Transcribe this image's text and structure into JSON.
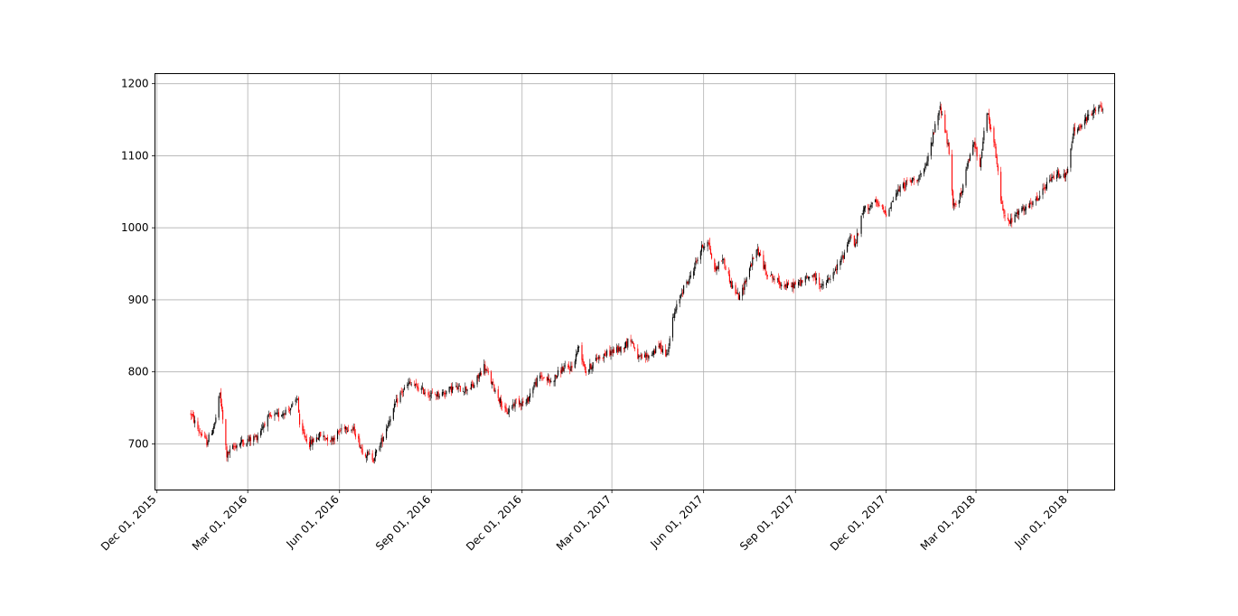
{
  "chart_data": {
    "type": "candlestick",
    "title": "",
    "xlabel": "",
    "ylabel": "",
    "x_ticks": [
      "Dec 01, 2015",
      "Mar 01, 2016",
      "Jun 01, 2016",
      "Sep 01, 2016",
      "Dec 01, 2016",
      "Mar 01, 2017",
      "Jun 01, 2017",
      "Sep 01, 2017",
      "Dec 01, 2017",
      "Mar 01, 2018",
      "Jun 01, 2018"
    ],
    "y_ticks": [
      700,
      800,
      900,
      1000,
      1100,
      1200
    ],
    "xlim": [
      "2015-11-29",
      "2018-07-18"
    ],
    "ylim": [
      636,
      1214
    ],
    "grid": true,
    "colors": {
      "up": "#000000",
      "down": "#ff0000",
      "grid": "#b0b0b0"
    },
    "close_trend": [
      [
        "2016-01-04",
        742
      ],
      [
        "2016-01-12",
        718
      ],
      [
        "2016-01-20",
        702
      ],
      [
        "2016-01-28",
        728
      ],
      [
        "2016-02-02",
        770
      ],
      [
        "2016-02-09",
        684
      ],
      [
        "2016-02-16",
        696
      ],
      [
        "2016-02-23",
        702
      ],
      [
        "2016-03-01",
        705
      ],
      [
        "2016-03-10",
        710
      ],
      [
        "2016-03-20",
        735
      ],
      [
        "2016-04-01",
        740
      ],
      [
        "2016-04-15",
        752
      ],
      [
        "2016-04-20",
        765
      ],
      [
        "2016-04-22",
        722
      ],
      [
        "2016-05-02",
        700
      ],
      [
        "2016-05-12",
        712
      ],
      [
        "2016-05-24",
        706
      ],
      [
        "2016-06-06",
        725
      ],
      [
        "2016-06-16",
        718
      ],
      [
        "2016-06-24",
        690
      ],
      [
        "2016-07-05",
        680
      ],
      [
        "2016-07-12",
        700
      ],
      [
        "2016-07-22",
        738
      ],
      [
        "2016-08-01",
        770
      ],
      [
        "2016-08-10",
        784
      ],
      [
        "2016-08-22",
        775
      ],
      [
        "2016-09-01",
        768
      ],
      [
        "2016-09-12",
        770
      ],
      [
        "2016-09-23",
        778
      ],
      [
        "2016-10-03",
        776
      ],
      [
        "2016-10-13",
        780
      ],
      [
        "2016-10-24",
        808
      ],
      [
        "2016-10-31",
        786
      ],
      [
        "2016-11-09",
        760
      ],
      [
        "2016-11-15",
        742
      ],
      [
        "2016-11-25",
        760
      ],
      [
        "2016-12-05",
        756
      ],
      [
        "2016-12-12",
        780
      ],
      [
        "2016-12-20",
        794
      ],
      [
        "2016-12-30",
        786
      ],
      [
        "2017-01-10",
        804
      ],
      [
        "2017-01-20",
        806
      ],
      [
        "2017-01-27",
        836
      ],
      [
        "2017-02-03",
        800
      ],
      [
        "2017-02-15",
        820
      ],
      [
        "2017-03-01",
        828
      ],
      [
        "2017-03-10",
        832
      ],
      [
        "2017-03-20",
        846
      ],
      [
        "2017-03-28",
        818
      ],
      [
        "2017-04-07",
        822
      ],
      [
        "2017-04-18",
        836
      ],
      [
        "2017-04-25",
        823
      ],
      [
        "2017-05-01",
        872
      ],
      [
        "2017-05-10",
        912
      ],
      [
        "2017-05-18",
        930
      ],
      [
        "2017-05-30",
        972
      ],
      [
        "2017-06-05",
        983
      ],
      [
        "2017-06-12",
        940
      ],
      [
        "2017-06-20",
        958
      ],
      [
        "2017-06-29",
        920
      ],
      [
        "2017-07-07",
        902
      ],
      [
        "2017-07-17",
        944
      ],
      [
        "2017-07-25",
        970
      ],
      [
        "2017-08-02",
        940
      ],
      [
        "2017-08-14",
        925
      ],
      [
        "2017-08-25",
        918
      ],
      [
        "2017-09-06",
        924
      ],
      [
        "2017-09-18",
        935
      ],
      [
        "2017-09-28",
        918
      ],
      [
        "2017-10-09",
        935
      ],
      [
        "2017-10-19",
        962
      ],
      [
        "2017-10-26",
        990
      ],
      [
        "2017-10-31",
        975
      ],
      [
        "2017-11-08",
        1025
      ],
      [
        "2017-11-20",
        1035
      ],
      [
        "2017-12-01",
        1020
      ],
      [
        "2017-12-11",
        1048
      ],
      [
        "2017-12-21",
        1062
      ],
      [
        "2018-01-02",
        1070
      ],
      [
        "2018-01-09",
        1080
      ],
      [
        "2018-01-16",
        1122
      ],
      [
        "2018-01-24",
        1170
      ],
      [
        "2018-02-01",
        1114
      ],
      [
        "2018-02-06",
        1030
      ],
      [
        "2018-02-14",
        1046
      ],
      [
        "2018-02-26",
        1120
      ],
      [
        "2018-03-05",
        1090
      ],
      [
        "2018-03-12",
        1160
      ],
      [
        "2018-03-20",
        1110
      ],
      [
        "2018-03-27",
        1030
      ],
      [
        "2018-04-03",
        1006
      ],
      [
        "2018-04-13",
        1022
      ],
      [
        "2018-04-24",
        1030
      ],
      [
        "2018-05-02",
        1040
      ],
      [
        "2018-05-11",
        1060
      ],
      [
        "2018-05-21",
        1076
      ],
      [
        "2018-05-31",
        1072
      ],
      [
        "2018-06-07",
        1136
      ],
      [
        "2018-06-14",
        1140
      ],
      [
        "2018-06-22",
        1155
      ],
      [
        "2018-07-02",
        1170
      ],
      [
        "2018-07-06",
        1160
      ]
    ]
  }
}
